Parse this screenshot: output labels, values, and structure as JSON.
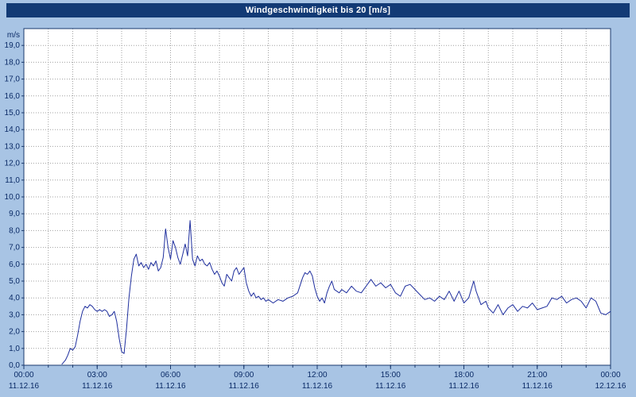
{
  "window": {
    "title": "Windgeschwindigkeit bis 20 [m/s]"
  },
  "colors": {
    "background": "#a8c4e4",
    "titlebar_bg": "#123a75",
    "titlebar_text": "#ffffff",
    "plot_bg": "#ffffff",
    "grid": "#a0a0a0",
    "axis": "#1a3a6e",
    "tick_text": "#0a2a66",
    "series_line": "#1f2f9e"
  },
  "chart_data": {
    "type": "line",
    "title": "Windgeschwindigkeit bis 20 [m/s]",
    "xlabel": "",
    "ylabel": "m/s",
    "ylim": [
      0,
      20
    ],
    "xlim_hours": [
      0,
      24
    ],
    "grid": "dashed",
    "legend": "none",
    "y_ticks": [
      "0,0",
      "1,0",
      "2,0",
      "3,0",
      "4,0",
      "5,0",
      "6,0",
      "7,0",
      "8,0",
      "9,0",
      "10,0",
      "11,0",
      "12,0",
      "13,0",
      "14,0",
      "15,0",
      "16,0",
      "17,0",
      "18,0",
      "19,0"
    ],
    "x_ticks": [
      {
        "hour": 0,
        "time": "00:00",
        "date": "11.12.16"
      },
      {
        "hour": 3,
        "time": "03:00",
        "date": "11.12.16"
      },
      {
        "hour": 6,
        "time": "06:00",
        "date": "11.12.16"
      },
      {
        "hour": 9,
        "time": "09:00",
        "date": "11.12.16"
      },
      {
        "hour": 12,
        "time": "12:00",
        "date": "11.12.16"
      },
      {
        "hour": 15,
        "time": "15:00",
        "date": "11.12.16"
      },
      {
        "hour": 18,
        "time": "18:00",
        "date": "11.12.16"
      },
      {
        "hour": 21,
        "time": "21:00",
        "date": "11.12.16"
      },
      {
        "hour": 24,
        "time": "00:00",
        "date": "12.12.16"
      }
    ],
    "series": [
      {
        "name": "Windgeschwindigkeit",
        "unit": "m/s",
        "color": "#1f2f9e",
        "points": [
          [
            1.55,
            0.05
          ],
          [
            1.7,
            0.3
          ],
          [
            1.8,
            0.6
          ],
          [
            1.9,
            1.0
          ],
          [
            2.0,
            0.9
          ],
          [
            2.1,
            1.1
          ],
          [
            2.2,
            1.8
          ],
          [
            2.3,
            2.6
          ],
          [
            2.4,
            3.2
          ],
          [
            2.5,
            3.5
          ],
          [
            2.6,
            3.4
          ],
          [
            2.7,
            3.6
          ],
          [
            2.8,
            3.5
          ],
          [
            2.9,
            3.3
          ],
          [
            3.0,
            3.2
          ],
          [
            3.1,
            3.3
          ],
          [
            3.2,
            3.2
          ],
          [
            3.3,
            3.3
          ],
          [
            3.4,
            3.2
          ],
          [
            3.5,
            2.9
          ],
          [
            3.6,
            3.0
          ],
          [
            3.7,
            3.2
          ],
          [
            3.8,
            2.6
          ],
          [
            3.9,
            1.6
          ],
          [
            4.0,
            0.8
          ],
          [
            4.1,
            0.7
          ],
          [
            4.2,
            2.2
          ],
          [
            4.3,
            4.0
          ],
          [
            4.4,
            5.3
          ],
          [
            4.5,
            6.3
          ],
          [
            4.6,
            6.6
          ],
          [
            4.7,
            5.9
          ],
          [
            4.8,
            6.1
          ],
          [
            4.9,
            5.8
          ],
          [
            5.0,
            6.0
          ],
          [
            5.1,
            5.7
          ],
          [
            5.2,
            6.1
          ],
          [
            5.3,
            5.9
          ],
          [
            5.4,
            6.2
          ],
          [
            5.5,
            5.6
          ],
          [
            5.6,
            5.8
          ],
          [
            5.7,
            6.4
          ],
          [
            5.8,
            8.1
          ],
          [
            5.9,
            7.0
          ],
          [
            6.0,
            6.3
          ],
          [
            6.1,
            7.4
          ],
          [
            6.2,
            7.0
          ],
          [
            6.3,
            6.4
          ],
          [
            6.4,
            6.0
          ],
          [
            6.5,
            6.6
          ],
          [
            6.6,
            7.2
          ],
          [
            6.7,
            6.5
          ],
          [
            6.8,
            8.6
          ],
          [
            6.9,
            6.3
          ],
          [
            7.0,
            5.9
          ],
          [
            7.1,
            6.5
          ],
          [
            7.2,
            6.2
          ],
          [
            7.3,
            6.3
          ],
          [
            7.4,
            6.0
          ],
          [
            7.5,
            5.9
          ],
          [
            7.6,
            6.1
          ],
          [
            7.7,
            5.7
          ],
          [
            7.8,
            5.4
          ],
          [
            7.9,
            5.6
          ],
          [
            8.0,
            5.3
          ],
          [
            8.1,
            4.9
          ],
          [
            8.2,
            4.7
          ],
          [
            8.3,
            5.4
          ],
          [
            8.4,
            5.2
          ],
          [
            8.5,
            5.0
          ],
          [
            8.6,
            5.6
          ],
          [
            8.7,
            5.8
          ],
          [
            8.8,
            5.4
          ],
          [
            8.9,
            5.6
          ],
          [
            9.0,
            5.8
          ],
          [
            9.1,
            4.9
          ],
          [
            9.2,
            4.4
          ],
          [
            9.3,
            4.1
          ],
          [
            9.4,
            4.3
          ],
          [
            9.5,
            4.0
          ],
          [
            9.6,
            4.1
          ],
          [
            9.7,
            3.9
          ],
          [
            9.8,
            4.0
          ],
          [
            9.9,
            3.8
          ],
          [
            10.0,
            3.9
          ],
          [
            10.2,
            3.7
          ],
          [
            10.4,
            3.9
          ],
          [
            10.6,
            3.8
          ],
          [
            10.8,
            4.0
          ],
          [
            11.0,
            4.1
          ],
          [
            11.2,
            4.3
          ],
          [
            11.4,
            5.2
          ],
          [
            11.5,
            5.5
          ],
          [
            11.6,
            5.4
          ],
          [
            11.7,
            5.6
          ],
          [
            11.8,
            5.3
          ],
          [
            11.9,
            4.6
          ],
          [
            12.0,
            4.1
          ],
          [
            12.1,
            3.8
          ],
          [
            12.2,
            4.0
          ],
          [
            12.3,
            3.7
          ],
          [
            12.4,
            4.3
          ],
          [
            12.5,
            4.7
          ],
          [
            12.6,
            5.0
          ],
          [
            12.7,
            4.5
          ],
          [
            12.8,
            4.4
          ],
          [
            12.9,
            4.3
          ],
          [
            13.0,
            4.5
          ],
          [
            13.2,
            4.3
          ],
          [
            13.4,
            4.7
          ],
          [
            13.6,
            4.4
          ],
          [
            13.8,
            4.3
          ],
          [
            14.0,
            4.7
          ],
          [
            14.2,
            5.1
          ],
          [
            14.4,
            4.7
          ],
          [
            14.6,
            4.9
          ],
          [
            14.8,
            4.6
          ],
          [
            15.0,
            4.8
          ],
          [
            15.2,
            4.3
          ],
          [
            15.4,
            4.1
          ],
          [
            15.6,
            4.7
          ],
          [
            15.8,
            4.8
          ],
          [
            16.0,
            4.5
          ],
          [
            16.2,
            4.2
          ],
          [
            16.4,
            3.9
          ],
          [
            16.6,
            4.0
          ],
          [
            16.8,
            3.8
          ],
          [
            17.0,
            4.1
          ],
          [
            17.2,
            3.9
          ],
          [
            17.4,
            4.4
          ],
          [
            17.6,
            3.8
          ],
          [
            17.8,
            4.4
          ],
          [
            18.0,
            3.7
          ],
          [
            18.2,
            4.0
          ],
          [
            18.4,
            5.0
          ],
          [
            18.5,
            4.4
          ],
          [
            18.7,
            3.6
          ],
          [
            18.9,
            3.8
          ],
          [
            19.0,
            3.4
          ],
          [
            19.2,
            3.1
          ],
          [
            19.4,
            3.6
          ],
          [
            19.6,
            3.0
          ],
          [
            19.8,
            3.4
          ],
          [
            20.0,
            3.6
          ],
          [
            20.2,
            3.2
          ],
          [
            20.4,
            3.5
          ],
          [
            20.6,
            3.4
          ],
          [
            20.8,
            3.7
          ],
          [
            21.0,
            3.3
          ],
          [
            21.2,
            3.4
          ],
          [
            21.4,
            3.5
          ],
          [
            21.6,
            4.0
          ],
          [
            21.8,
            3.9
          ],
          [
            22.0,
            4.1
          ],
          [
            22.2,
            3.7
          ],
          [
            22.4,
            3.9
          ],
          [
            22.6,
            4.0
          ],
          [
            22.8,
            3.8
          ],
          [
            23.0,
            3.4
          ],
          [
            23.2,
            4.0
          ],
          [
            23.4,
            3.8
          ],
          [
            23.6,
            3.1
          ],
          [
            23.8,
            3.0
          ],
          [
            23.9,
            3.1
          ],
          [
            24.0,
            3.2
          ]
        ]
      }
    ]
  }
}
